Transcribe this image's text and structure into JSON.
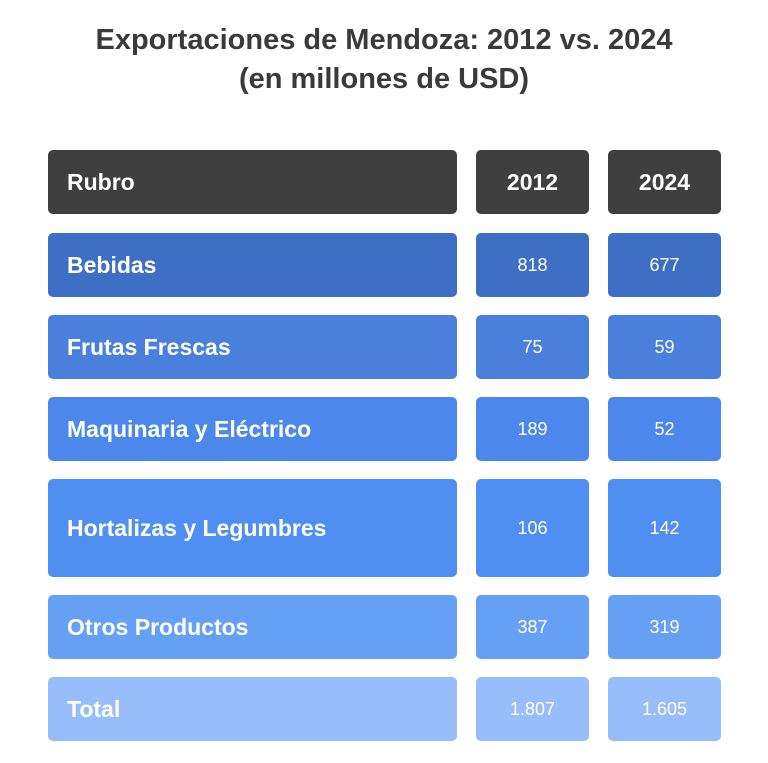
{
  "chart_data": {
    "type": "table",
    "title_line1": "Exportaciones de Mendoza: 2012 vs. 2024",
    "title_line2": "(en  millones de USD)",
    "columns": [
      "Rubro",
      "2012",
      "2024"
    ],
    "rows": [
      {
        "label": "Bebidas",
        "v2012": "818",
        "v2024": "677",
        "color": "#3f6fc4"
      },
      {
        "label": "Frutas Frescas",
        "v2012": "75",
        "v2024": "59",
        "color": "#4a80dc"
      },
      {
        "label": "Maquinaria y Eléctrico",
        "v2012": "189",
        "v2024": "52",
        "color": "#4c88ec"
      },
      {
        "label": "Hortalizas y Legumbres",
        "v2012": "106",
        "v2024": "142",
        "color": "#4f8ff2"
      },
      {
        "label": "Otros Productos",
        "v2012": "387",
        "v2024": "319",
        "color": "#66a0f5"
      },
      {
        "label": "Total",
        "v2012": "1.807",
        "v2024": "1.605",
        "color": "#97befa"
      }
    ],
    "header_color": "#3f3f3f"
  }
}
